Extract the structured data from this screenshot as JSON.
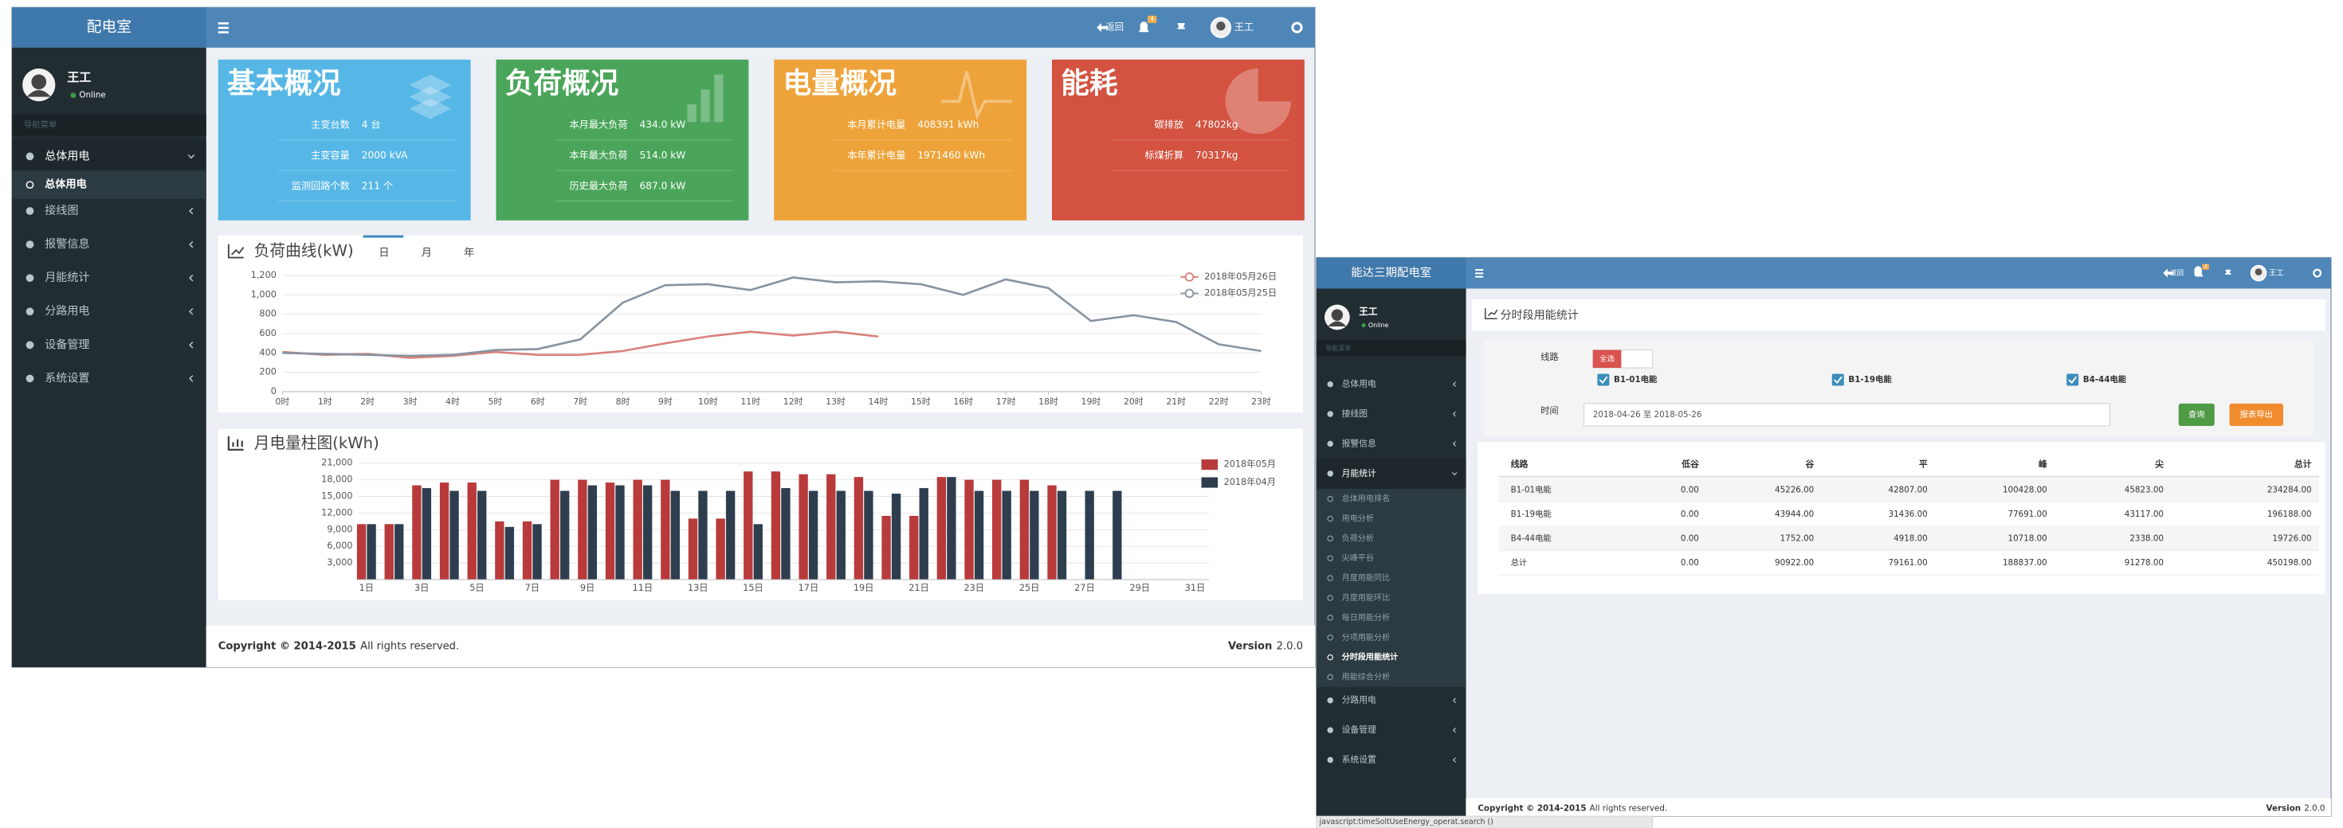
{
  "left": {
    "brand": "配电室",
    "user": "王工",
    "status": "Online",
    "nav_header": "导航菜单",
    "topbar": {
      "back": "返回",
      "badge": "4"
    },
    "menu": [
      "总体用电",
      "接线图",
      "报警信息",
      "月能统计",
      "分路用电",
      "设备管理",
      "系统设置"
    ],
    "submenu": [
      "总体用电"
    ],
    "cards": [
      {
        "title": "基本概况",
        "color": "#56b7e6",
        "rows": [
          {
            "label": "主变台数",
            "value": "4 台"
          },
          {
            "label": "主变容量",
            "value": "2000 kVA"
          },
          {
            "label": "监测回路个数",
            "value": "211 个"
          }
        ]
      },
      {
        "title": "负荷概况",
        "color": "#4aa55a",
        "rows": [
          {
            "label": "本月最大负荷",
            "value": "434.0 kW"
          },
          {
            "label": "本年最大负荷",
            "value": "514.0 kW"
          },
          {
            "label": "历史最大负荷",
            "value": "687.0 kW"
          }
        ]
      },
      {
        "title": "电量概况",
        "color": "#eea33a",
        "rows": [
          {
            "label": "本月累计电量",
            "value": "408391 kWh"
          },
          {
            "label": "本年累计电量",
            "value": "1971460 kWh"
          }
        ]
      },
      {
        "title": "能耗",
        "color": "#d35240",
        "rows": [
          {
            "label": "碳排放",
            "value": "47802kg"
          },
          {
            "label": "标煤折算",
            "value": "70317kg"
          }
        ]
      }
    ],
    "load_chart": {
      "type": "line",
      "title": "负荷曲线(kW)",
      "tabs": [
        "日",
        "月",
        "年"
      ],
      "categories": [
        "0时",
        "1时",
        "2时",
        "3时",
        "4时",
        "5时",
        "6时",
        "7时",
        "8时",
        "9时",
        "10时",
        "11时",
        "12时",
        "13时",
        "14时",
        "15时",
        "16时",
        "17时",
        "18时",
        "19时",
        "20时",
        "21时",
        "22时",
        "23时"
      ],
      "ylim": [
        0,
        1200
      ],
      "yticks": [
        0,
        200,
        400,
        600,
        800,
        {
          "value": 1000,
          "label": "1,000"
        },
        {
          "value": 1200,
          "label": "1,200"
        }
      ],
      "grid": true,
      "series": [
        {
          "name": "2018年05月26日",
          "color": "#d9827b",
          "values": [
            410,
            380,
            390,
            350,
            370,
            410,
            380,
            380,
            420,
            500,
            570,
            620,
            580,
            620,
            570,
            null,
            null,
            null,
            null,
            null,
            null,
            null,
            null,
            null
          ]
        },
        {
          "name": "2018年05月25日",
          "color": "#8793a0",
          "values": [
            400,
            390,
            380,
            370,
            380,
            430,
            440,
            540,
            920,
            1100,
            1110,
            1050,
            1180,
            1130,
            1140,
            1110,
            1000,
            1160,
            1070,
            730,
            790,
            720,
            490,
            420
          ]
        }
      ]
    },
    "energy_chart": {
      "type": "bar",
      "title": "月电量柱图(kWh)",
      "categories": [
        "1日",
        null,
        "3日",
        null,
        "5日",
        null,
        "7日",
        null,
        "9日",
        null,
        "11日",
        null,
        "13日",
        null,
        "15日",
        null,
        "17日",
        null,
        "19日",
        null,
        "21日",
        null,
        "23日",
        null,
        "25日",
        null,
        "27日",
        null,
        "29日",
        null,
        "31日"
      ],
      "ylim": [
        0,
        21000
      ],
      "yticks": [
        {
          "value": 3000,
          "label": "3,000"
        },
        {
          "value": 6000,
          "label": "6,000"
        },
        {
          "value": 9000,
          "label": "9,000"
        },
        {
          "value": 12000,
          "label": "12,000"
        },
        {
          "value": 15000,
          "label": "15,000"
        },
        {
          "value": 18000,
          "label": "18,000"
        },
        {
          "value": 21000,
          "label": "21,000"
        }
      ],
      "grid": true,
      "series": [
        {
          "name": "2018年05月",
          "color": "#b93a3a",
          "values": [
            10000,
            10000,
            17000,
            17500,
            17500,
            10500,
            10500,
            18000,
            18000,
            17500,
            18000,
            18000,
            11000,
            11000,
            19500,
            19500,
            19000,
            19000,
            18500,
            11500,
            11500,
            18500,
            18000,
            18000,
            18000,
            17000,
            null,
            null,
            null,
            null,
            null
          ]
        },
        {
          "name": "2018年04月",
          "color": "#2e3e4e",
          "values": [
            10000,
            10000,
            16500,
            16000,
            16000,
            9500,
            10000,
            16000,
            17000,
            17000,
            17000,
            16000,
            16000,
            16000,
            10000,
            16500,
            16000,
            16000,
            16000,
            15500,
            16500,
            18500,
            16000,
            16000,
            16000,
            16000,
            16000,
            16000,
            null,
            null,
            null
          ]
        }
      ]
    },
    "footer": {
      "copyright": "Copyright © 2014-2015",
      "rights": "All rights reserved.",
      "version_label": "Version",
      "version": "2.0.0"
    }
  },
  "right": {
    "brand": "能达三期配电室",
    "user": "王工",
    "status": "Online",
    "nav_header": "导航菜单",
    "topbar": {
      "back": "返回",
      "badge": "4"
    },
    "menu": [
      "总体用电",
      "接线图",
      "报警信息",
      "月能统计",
      "分路用电",
      "设备管理",
      "系统设置"
    ],
    "submenu": [
      "总体用电排名",
      "用电分析",
      "负荷分析",
      "尖峰平谷",
      "月度用能同比",
      "月度用能环比",
      "每日用能分析",
      "分项用能分析",
      "分时段用能统计",
      "用能综合分析"
    ],
    "panel_title": "分时段用能统计",
    "form": {
      "line_label": "线路",
      "select_all": "全选",
      "lines": [
        "B1-01电能",
        "B1-19电能",
        "B4-44电能"
      ],
      "time_label": "时间",
      "date_range": "2018-04-26 至 2018-05-26",
      "query": "查询",
      "export": "报表导出"
    },
    "table": {
      "header": [
        "线路",
        "低谷",
        "谷",
        "平",
        "峰",
        "尖",
        "总计"
      ],
      "rows": [
        [
          "B1-01电能",
          "0.00",
          "45226.00",
          "42807.00",
          "100428.00",
          "45823.00",
          "234284.00"
        ],
        [
          "B1-19电能",
          "0.00",
          "43944.00",
          "31436.00",
          "77691.00",
          "43117.00",
          "196188.00"
        ],
        [
          "B4-44电能",
          "0.00",
          "1752.00",
          "4918.00",
          "10718.00",
          "2338.00",
          "19726.00"
        ],
        [
          "总计",
          "0.00",
          "90922.00",
          "79161.00",
          "188837.00",
          "91278.00",
          "450198.00"
        ]
      ]
    },
    "footer": {
      "copyright": "Copyright © 2014-2015",
      "rights": "All rights reserved.",
      "version_label": "Version",
      "version": "2.0.0"
    },
    "status_bar": "javascript:timeSoltUseEnergy_operat.search ()"
  }
}
